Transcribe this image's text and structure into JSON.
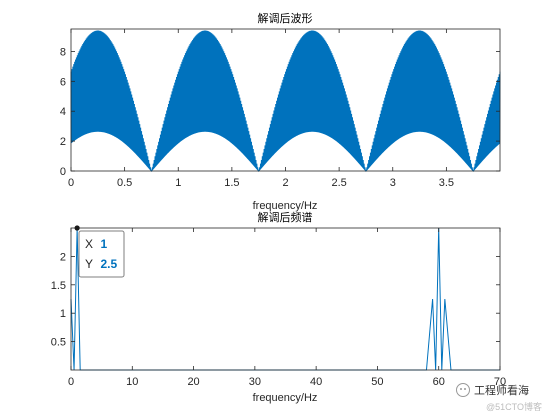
{
  "chart_data": [
    {
      "type": "line",
      "title": "解调后波形",
      "xlabel": "frequency/Hz",
      "ylabel": "",
      "xlim": [
        0,
        4
      ],
      "ylim": [
        0,
        9.5
      ],
      "xticks": [
        "0",
        "0.5",
        "1",
        "1.5",
        "2",
        "2.5",
        "3",
        "3.5"
      ],
      "yticks": [
        "0",
        "2",
        "4",
        "6",
        "8"
      ],
      "grid": false,
      "series": [
        {
          "color": "#0072bd",
          "description_values": {
            "carrier_frequency_hz": 60,
            "envelope_period_s": 1,
            "envelope_peak": 9.4,
            "envelope_null_at": [
              0.75,
              1.75,
              2.75,
              3.75
            ],
            "envelope_peaks_at": [
              0.25,
              1.25,
              2.25,
              3.25
            ]
          }
        }
      ]
    },
    {
      "type": "line",
      "title": "解调后频谱",
      "xlabel": "frequency/Hz",
      "ylabel": "",
      "xlim": [
        0,
        70
      ],
      "ylim": [
        0,
        2.5
      ],
      "xticks": [
        "0",
        "10",
        "20",
        "30",
        "40",
        "50",
        "60",
        "70"
      ],
      "yticks": [
        "0.5",
        "1",
        "1.5",
        "2"
      ],
      "grid": false,
      "series": [
        {
          "color": "#0072bd",
          "x": [
            0,
            0.5,
            1,
            1.5,
            2,
            58,
            59,
            59.5,
            60,
            60.5,
            61,
            62,
            70
          ],
          "y": [
            1.25,
            0,
            2.5,
            0,
            0,
            0,
            1.25,
            0,
            2.5,
            0,
            1.25,
            0,
            0
          ]
        }
      ],
      "datatip": {
        "x_key": "X",
        "x_value": "1",
        "y_key": "Y",
        "y_value": "2.5",
        "at": [
          1,
          2.5
        ]
      }
    }
  ],
  "watermark": {
    "text": "工程师看海",
    "subtext": "@51CTO博客"
  }
}
